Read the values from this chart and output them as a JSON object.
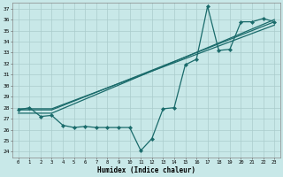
{
  "xlabel": "Humidex (Indice chaleur)",
  "xlim": [
    -0.5,
    23.5
  ],
  "ylim": [
    23.5,
    37.5
  ],
  "yticks": [
    24,
    25,
    26,
    27,
    28,
    29,
    30,
    31,
    32,
    33,
    34,
    35,
    36,
    37
  ],
  "xticks": [
    0,
    1,
    2,
    3,
    4,
    5,
    6,
    7,
    8,
    9,
    10,
    11,
    12,
    13,
    14,
    15,
    16,
    17,
    18,
    19,
    20,
    21,
    22,
    23
  ],
  "bg_color": "#c8e8e8",
  "grid_color": "#aacccc",
  "line_color": "#1a6b6b",
  "series": [
    {
      "x": [
        0,
        1,
        2,
        3,
        4,
        5,
        6,
        7,
        8,
        9,
        10,
        11,
        12,
        13,
        14,
        15,
        16,
        17,
        18,
        19,
        20,
        21,
        22,
        23
      ],
      "y": [
        27.8,
        28.0,
        27.2,
        27.3,
        26.4,
        26.2,
        26.3,
        26.2,
        26.2,
        26.2,
        26.2,
        24.1,
        25.2,
        27.9,
        28.0,
        31.9,
        32.4,
        37.2,
        33.2,
        33.3,
        35.8,
        35.8,
        36.1,
        35.8
      ],
      "marker": "D",
      "markersize": 2.2,
      "linewidth": 0.9,
      "has_marker": true
    },
    {
      "x": [
        0,
        3,
        23
      ],
      "y": [
        27.5,
        27.5,
        36.0
      ],
      "marker": null,
      "markersize": 0,
      "linewidth": 0.9,
      "has_marker": false
    },
    {
      "x": [
        0,
        3,
        23
      ],
      "y": [
        27.8,
        27.8,
        35.8
      ],
      "marker": null,
      "markersize": 0,
      "linewidth": 0.9,
      "has_marker": false
    },
    {
      "x": [
        0,
        3,
        23
      ],
      "y": [
        27.9,
        27.9,
        35.5
      ],
      "marker": null,
      "markersize": 0,
      "linewidth": 0.9,
      "has_marker": false
    }
  ]
}
